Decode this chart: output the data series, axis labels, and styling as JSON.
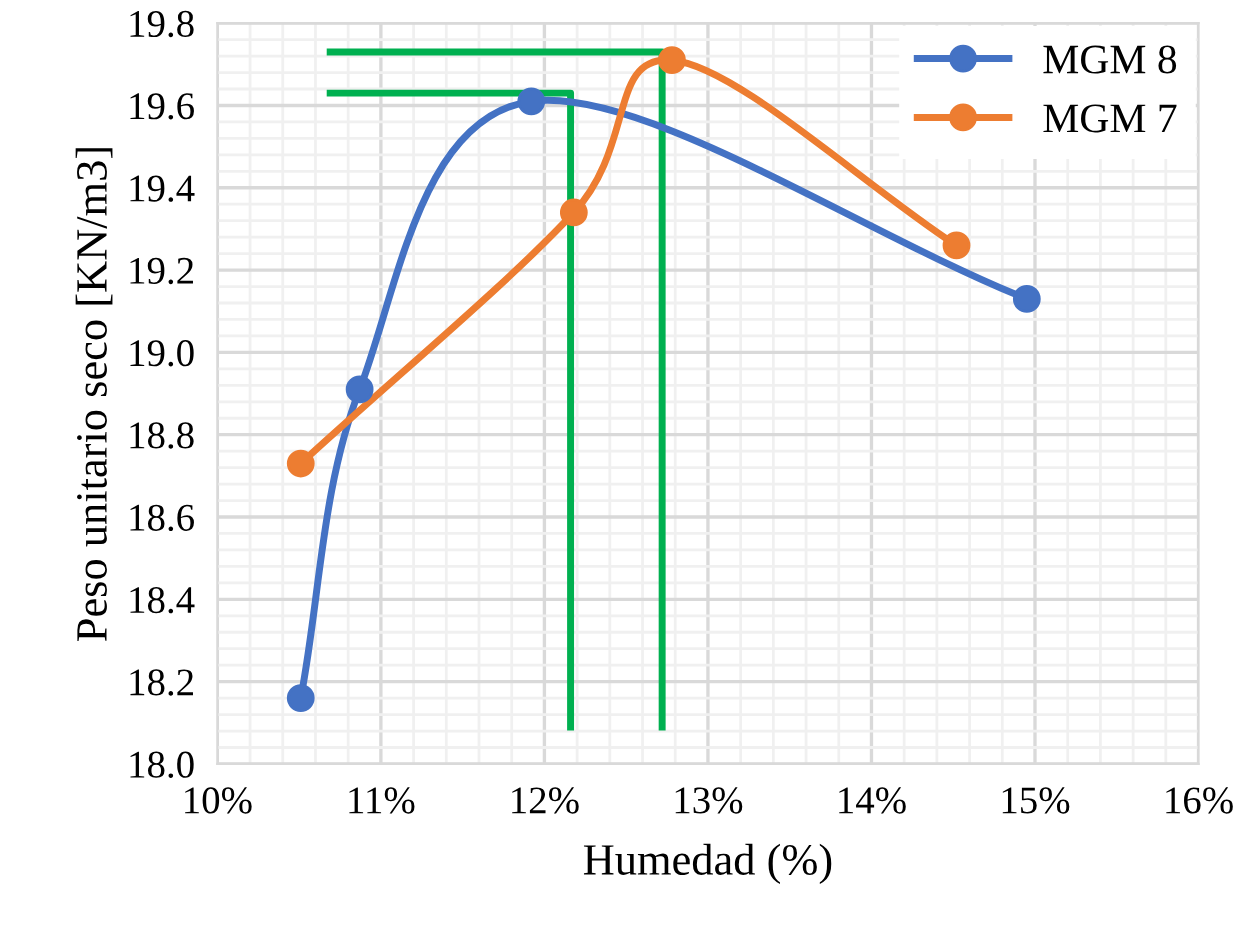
{
  "chart_data": {
    "type": "line",
    "xlabel": "Humedad (%)",
    "ylabel": "Peso unitario seco [KN/m3]",
    "xlim": [
      10,
      16
    ],
    "xticks": [
      {
        "value": 10,
        "label": "10%"
      },
      {
        "value": 11,
        "label": "11%"
      },
      {
        "value": 12,
        "label": "12%"
      },
      {
        "value": 13,
        "label": "13%"
      },
      {
        "value": 14,
        "label": "14%"
      },
      {
        "value": 15,
        "label": "15%"
      },
      {
        "value": 16,
        "label": "16%"
      }
    ],
    "ylim": [
      18.0,
      19.8
    ],
    "yticks": [
      {
        "value": 18.0,
        "label": "18.0"
      },
      18.2,
      18.4,
      18.6,
      18.8,
      {
        "value": 19.0,
        "label": "19.0"
      },
      19.2,
      19.4,
      19.6,
      19.8
    ],
    "grid": true,
    "legend": "top right",
    "marker": "circle",
    "series": [
      {
        "name": "MGM 8",
        "color": "#4472c4",
        "x": [
          10.51,
          10.87,
          11.92,
          14.95
        ],
        "values": [
          18.16,
          18.91,
          19.61,
          19.13
        ]
      },
      {
        "name": "MGM 7",
        "color": "#ed7d31",
        "x": [
          10.51,
          12.18,
          12.78,
          14.52
        ],
        "values": [
          18.73,
          19.34,
          19.71,
          19.26
        ]
      },
      {
        "color": "#00b050",
        "marker": "none",
        "x": [
          10.69,
          12.16,
          12.16
        ],
        "values": [
          19.63,
          19.63,
          18.09
        ]
      },
      {
        "color": "#00b050",
        "marker": "none",
        "x": [
          10.69,
          12.72,
          12.72
        ],
        "values": [
          19.73,
          19.73,
          18.09
        ]
      }
    ]
  }
}
